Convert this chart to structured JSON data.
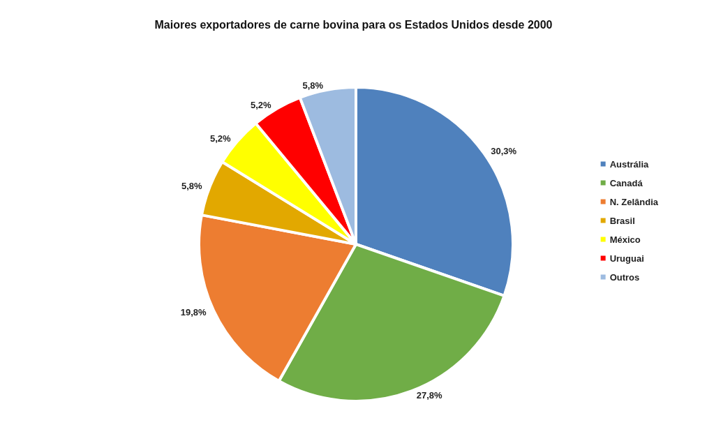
{
  "chart_data": {
    "type": "pie",
    "title": "Maiores exportadores de carne bovina para os Estados Unidos desde 2000",
    "categories": [
      "Austrália",
      "Canadá",
      "N. Zelândia",
      "Brasil",
      "México",
      "Uruguai",
      "Outros"
    ],
    "values": [
      30.3,
      27.8,
      19.8,
      5.8,
      5.2,
      5.2,
      5.8
    ],
    "colors": [
      "#4f81bd",
      "#70ad47",
      "#ed7d31",
      "#e2a800",
      "#ffff00",
      "#ff0000",
      "#9dbbe0"
    ],
    "value_labels": [
      "30,3%",
      "27,8%",
      "19,8%",
      "5,8%",
      "5,2%",
      "5,2%",
      "5,8%"
    ],
    "legend": "right"
  }
}
